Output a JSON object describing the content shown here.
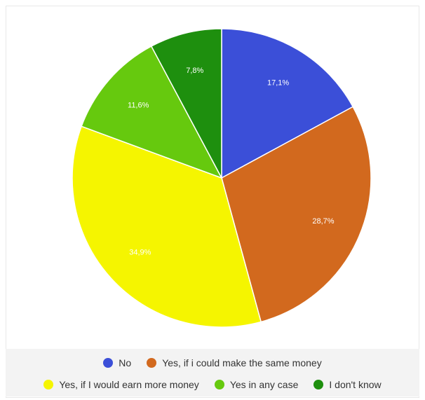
{
  "chart_data": {
    "type": "pie",
    "start_angle_deg": 0,
    "direction": "clockwise",
    "slices": [
      {
        "label": "No",
        "value": 17.1,
        "display": "17,1%",
        "color": "#3b4fd8"
      },
      {
        "label": "Yes, if i could make the same money",
        "value": 28.7,
        "display": "28,7%",
        "color": "#d2691e"
      },
      {
        "label": "Yes, if I would earn more money",
        "value": 34.9,
        "display": "34,9%",
        "color": "#f5f500"
      },
      {
        "label": "Yes in any case",
        "value": 11.6,
        "display": "11,6%",
        "color": "#66c90e"
      },
      {
        "label": "I don't know",
        "value": 7.8,
        "display": "7,8%",
        "color": "#1e8f0e"
      }
    ],
    "legend": {
      "position": "bottom",
      "rows": [
        [
          0,
          1
        ],
        [
          2,
          3,
          4
        ]
      ]
    },
    "label_color": "#ffffff"
  }
}
